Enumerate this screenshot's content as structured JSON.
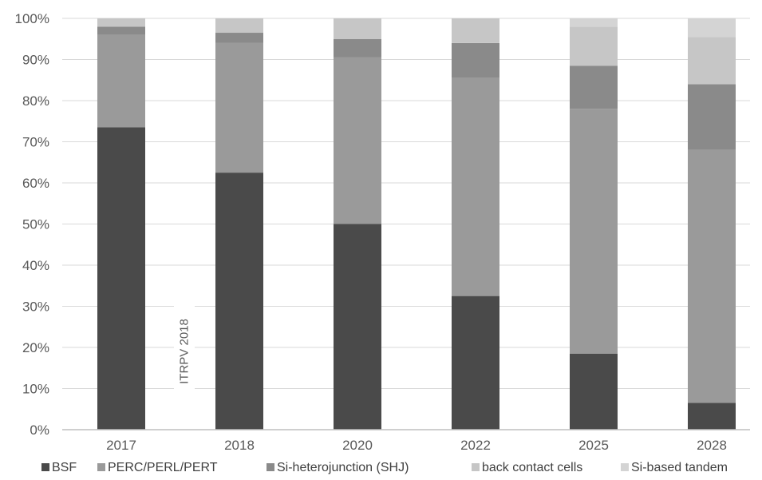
{
  "chart_data": {
    "type": "bar",
    "stacked": true,
    "categories": [
      "2017",
      "2018",
      "2020",
      "2022",
      "2025",
      "2028"
    ],
    "y_ticks": [
      "0%",
      "10%",
      "20%",
      "30%",
      "40%",
      "50%",
      "60%",
      "70%",
      "80%",
      "90%",
      "100%"
    ],
    "ylim": [
      0,
      100
    ],
    "series": [
      {
        "name": "BSF",
        "color": "#4a4a4a",
        "values": [
          73.5,
          62.5,
          50,
          32.5,
          18.5,
          6.5
        ]
      },
      {
        "name": "PERC/PERL/PERT",
        "color": "#9a9a9a",
        "values": [
          22.5,
          31.5,
          40.5,
          53,
          59.5,
          61.5
        ]
      },
      {
        "name": "Si-heterojunction (SHJ)",
        "color": "#8a8a8a",
        "values": [
          2,
          2.5,
          4.5,
          8.5,
          10.5,
          16
        ]
      },
      {
        "name": "back contact cells",
        "color": "#c6c6c6",
        "values": [
          2,
          3.5,
          5,
          6,
          9.5,
          11.5
        ]
      },
      {
        "name": "Si-based tandem",
        "color": "#d4d4d4",
        "values": [
          0,
          0,
          0,
          0,
          2,
          4.5
        ]
      }
    ],
    "annotation": "ITRPV 2018",
    "grid": true,
    "legend_position": "bottom"
  }
}
